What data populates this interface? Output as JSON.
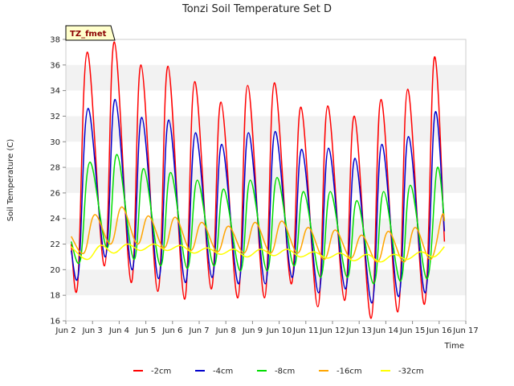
{
  "chart_data": {
    "type": "line",
    "title": "Tonzi Soil Temperature Set D",
    "xlabel": "Time",
    "ylabel": "Soil Temperature (C)",
    "site_label": "TZ_fmet",
    "xlim": [
      2.0,
      17.0
    ],
    "ylim": [
      16,
      38
    ],
    "x_ticks": [
      2,
      3,
      4,
      5,
      6,
      7,
      8,
      9,
      10,
      11,
      12,
      13,
      14,
      15,
      16,
      17
    ],
    "x_tick_labels": [
      "Jun 2",
      "Jun 3",
      "Jun 4",
      "Jun 5",
      "Jun 6",
      "Jun 7",
      "Jun 8",
      "Jun 9",
      "Jun 10",
      "Jun 11",
      "Jun 12",
      "Jun 13",
      "Jun 14",
      "Jun 15",
      "Jun 16",
      "Jun 17"
    ],
    "y_ticks": [
      16,
      18,
      20,
      22,
      24,
      26,
      28,
      30,
      32,
      34,
      36,
      38
    ],
    "grid": "horizontal bands",
    "legend_position": "bottom",
    "series": [
      {
        "name": "-2cm",
        "color": "#ff0000",
        "points": [
          [
            2.2,
            22.0
          ],
          [
            2.45,
            19.0
          ],
          [
            2.8,
            37.0
          ],
          [
            3.45,
            20.3
          ],
          [
            3.82,
            37.8
          ],
          [
            4.45,
            19.0
          ],
          [
            4.82,
            36.0
          ],
          [
            5.45,
            18.3
          ],
          [
            5.83,
            35.9
          ],
          [
            6.45,
            17.7
          ],
          [
            6.83,
            34.7
          ],
          [
            7.45,
            18.5
          ],
          [
            7.82,
            33.1
          ],
          [
            8.45,
            17.8
          ],
          [
            8.82,
            34.4
          ],
          [
            9.45,
            17.8
          ],
          [
            9.82,
            34.6
          ],
          [
            10.45,
            18.9
          ],
          [
            10.82,
            32.7
          ],
          [
            11.45,
            17.1
          ],
          [
            11.82,
            32.8
          ],
          [
            12.45,
            17.6
          ],
          [
            12.82,
            32.0
          ],
          [
            13.45,
            16.2
          ],
          [
            13.82,
            33.3
          ],
          [
            14.45,
            16.7
          ],
          [
            14.82,
            34.1
          ],
          [
            15.45,
            17.3
          ],
          [
            15.82,
            36.6
          ],
          [
            16.2,
            22.2
          ]
        ]
      },
      {
        "name": "-4cm",
        "color": "#0000cc",
        "points": [
          [
            2.2,
            21.5
          ],
          [
            2.48,
            19.8
          ],
          [
            2.83,
            32.6
          ],
          [
            3.48,
            21.0
          ],
          [
            3.85,
            33.3
          ],
          [
            4.48,
            20.0
          ],
          [
            4.85,
            31.9
          ],
          [
            5.48,
            19.3
          ],
          [
            5.86,
            31.7
          ],
          [
            6.48,
            19.0
          ],
          [
            6.86,
            30.7
          ],
          [
            7.48,
            19.4
          ],
          [
            7.85,
            29.8
          ],
          [
            8.48,
            18.9
          ],
          [
            8.85,
            30.7
          ],
          [
            9.48,
            18.9
          ],
          [
            9.85,
            30.8
          ],
          [
            10.48,
            19.4
          ],
          [
            10.85,
            29.4
          ],
          [
            11.48,
            18.2
          ],
          [
            11.85,
            29.5
          ],
          [
            12.48,
            18.5
          ],
          [
            12.85,
            28.7
          ],
          [
            13.48,
            17.4
          ],
          [
            13.85,
            29.8
          ],
          [
            14.48,
            17.9
          ],
          [
            14.85,
            30.4
          ],
          [
            15.48,
            18.2
          ],
          [
            15.85,
            32.3
          ],
          [
            16.2,
            23.0
          ]
        ]
      },
      {
        "name": "-8cm",
        "color": "#00dd00",
        "points": [
          [
            2.2,
            22.2
          ],
          [
            2.55,
            20.8
          ],
          [
            2.9,
            28.4
          ],
          [
            3.55,
            21.7
          ],
          [
            3.92,
            29.0
          ],
          [
            4.55,
            20.8
          ],
          [
            4.92,
            27.9
          ],
          [
            5.55,
            20.3
          ],
          [
            5.93,
            27.6
          ],
          [
            6.55,
            20.1
          ],
          [
            6.93,
            27.0
          ],
          [
            7.55,
            20.3
          ],
          [
            7.92,
            26.3
          ],
          [
            8.55,
            19.9
          ],
          [
            8.92,
            27.0
          ],
          [
            9.55,
            19.9
          ],
          [
            9.92,
            27.2
          ],
          [
            10.55,
            20.3
          ],
          [
            10.92,
            26.1
          ],
          [
            11.55,
            19.4
          ],
          [
            11.92,
            26.1
          ],
          [
            12.55,
            19.4
          ],
          [
            12.92,
            25.4
          ],
          [
            13.55,
            18.9
          ],
          [
            13.92,
            26.1
          ],
          [
            14.55,
            19.1
          ],
          [
            14.92,
            26.6
          ],
          [
            15.55,
            19.3
          ],
          [
            15.92,
            27.9
          ],
          [
            16.2,
            23.8
          ]
        ]
      },
      {
        "name": "-16cm",
        "color": "#ffa500",
        "points": [
          [
            2.2,
            22.6
          ],
          [
            2.68,
            21.3
          ],
          [
            3.08,
            24.3
          ],
          [
            3.68,
            22.0
          ],
          [
            4.1,
            24.9
          ],
          [
            4.68,
            22.0
          ],
          [
            5.1,
            24.2
          ],
          [
            5.68,
            21.7
          ],
          [
            6.1,
            24.1
          ],
          [
            6.68,
            21.5
          ],
          [
            7.1,
            23.7
          ],
          [
            7.68,
            21.4
          ],
          [
            8.1,
            23.4
          ],
          [
            8.68,
            21.3
          ],
          [
            9.1,
            23.7
          ],
          [
            9.68,
            21.3
          ],
          [
            10.1,
            23.8
          ],
          [
            10.68,
            21.3
          ],
          [
            11.1,
            23.3
          ],
          [
            11.68,
            20.8
          ],
          [
            12.1,
            23.1
          ],
          [
            12.68,
            20.9
          ],
          [
            13.1,
            22.7
          ],
          [
            13.68,
            20.6
          ],
          [
            14.1,
            23.0
          ],
          [
            14.68,
            20.6
          ],
          [
            15.1,
            23.3
          ],
          [
            15.68,
            20.8
          ],
          [
            16.1,
            24.2
          ],
          [
            16.2,
            23.8
          ]
        ]
      },
      {
        "name": "-32cm",
        "color": "#ffff00",
        "points": [
          [
            2.2,
            21.8
          ],
          [
            2.8,
            20.8
          ],
          [
            3.3,
            21.9
          ],
          [
            3.8,
            21.3
          ],
          [
            4.3,
            22.0
          ],
          [
            4.8,
            21.5
          ],
          [
            5.3,
            22.0
          ],
          [
            5.8,
            21.5
          ],
          [
            6.3,
            21.9
          ],
          [
            6.8,
            21.3
          ],
          [
            7.3,
            21.7
          ],
          [
            7.8,
            21.2
          ],
          [
            8.3,
            21.6
          ],
          [
            8.8,
            21.0
          ],
          [
            9.3,
            21.6
          ],
          [
            9.8,
            21.1
          ],
          [
            10.3,
            21.6
          ],
          [
            10.8,
            21.0
          ],
          [
            11.3,
            21.4
          ],
          [
            11.8,
            20.9
          ],
          [
            12.3,
            21.3
          ],
          [
            12.8,
            20.7
          ],
          [
            13.3,
            21.2
          ],
          [
            13.8,
            20.6
          ],
          [
            14.3,
            21.2
          ],
          [
            14.8,
            20.8
          ],
          [
            15.3,
            21.4
          ],
          [
            15.8,
            21.0
          ],
          [
            16.2,
            21.8
          ]
        ]
      }
    ]
  }
}
